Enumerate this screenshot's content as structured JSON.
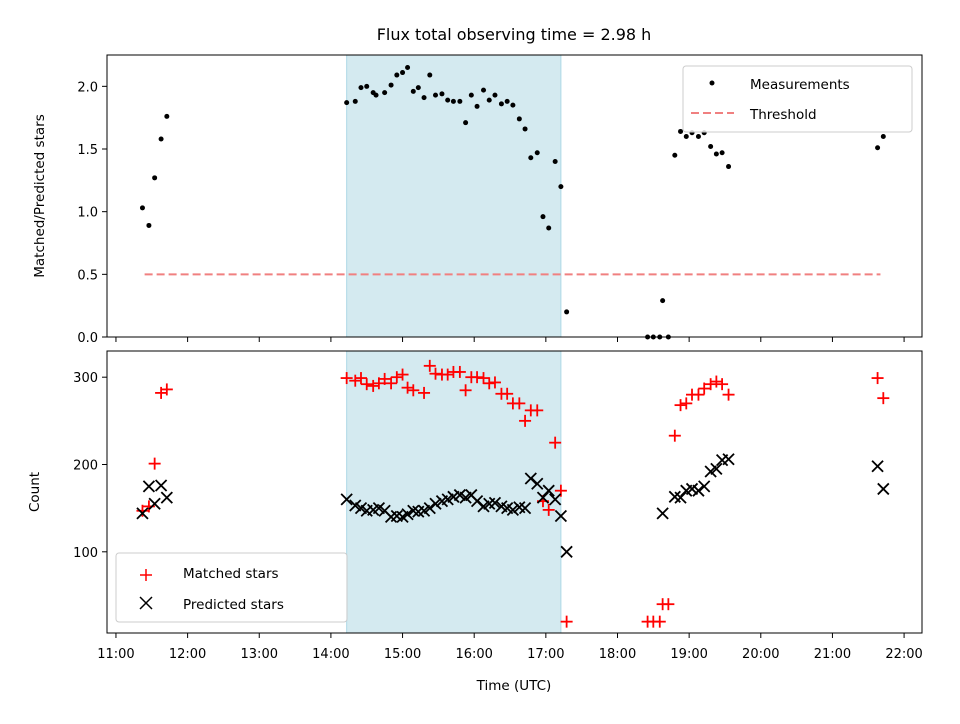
{
  "chart_data": [
    {
      "type": "scatter",
      "title": "Flux total observing time = 2.98 h",
      "xlabel": "",
      "ylabel": "Matched/Predicted stars",
      "ylim": [
        0,
        2.25
      ],
      "xlim": [
        10.875,
        22.25
      ],
      "yticks": [
        0.0,
        0.5,
        1.0,
        1.5,
        2.0
      ],
      "ytick_labels": [
        "0.0",
        "0.5",
        "1.0",
        "1.5",
        "2.0"
      ],
      "shaded_span": [
        14.22,
        17.21
      ],
      "shade_color": "#d4eaf0",
      "legend": {
        "position": "upper right",
        "entries": [
          {
            "label": "Measurements",
            "marker": "dot",
            "color": "#000000"
          },
          {
            "label": "Threshold",
            "marker": "dashed-line",
            "color": "#f08080"
          }
        ]
      },
      "threshold": {
        "name": "Threshold",
        "x": [
          11.4,
          21.67
        ],
        "y": 0.5,
        "color": "#f08080"
      },
      "series": [
        {
          "name": "Measurements",
          "color": "#000000",
          "points": [
            [
              11.37,
              1.03
            ],
            [
              11.46,
              0.89
            ],
            [
              11.54,
              1.27
            ],
            [
              11.63,
              1.58
            ],
            [
              11.71,
              1.76
            ],
            [
              14.22,
              1.87
            ],
            [
              14.34,
              1.88
            ],
            [
              14.42,
              1.99
            ],
            [
              14.5,
              2.0
            ],
            [
              14.59,
              1.95
            ],
            [
              14.63,
              1.93
            ],
            [
              14.75,
              1.95
            ],
            [
              14.84,
              2.01
            ],
            [
              14.92,
              2.09
            ],
            [
              15.0,
              2.11
            ],
            [
              15.07,
              2.15
            ],
            [
              15.15,
              1.96
            ],
            [
              15.22,
              1.99
            ],
            [
              15.3,
              1.91
            ],
            [
              15.38,
              2.09
            ],
            [
              15.46,
              1.93
            ],
            [
              15.55,
              1.94
            ],
            [
              15.63,
              1.89
            ],
            [
              15.71,
              1.88
            ],
            [
              15.8,
              1.88
            ],
            [
              15.88,
              1.71
            ],
            [
              15.96,
              1.93
            ],
            [
              16.04,
              1.84
            ],
            [
              16.13,
              1.97
            ],
            [
              16.21,
              1.89
            ],
            [
              16.29,
              1.93
            ],
            [
              16.38,
              1.86
            ],
            [
              16.46,
              1.88
            ],
            [
              16.54,
              1.85
            ],
            [
              16.63,
              1.74
            ],
            [
              16.71,
              1.66
            ],
            [
              16.79,
              1.43
            ],
            [
              16.88,
              1.47
            ],
            [
              16.96,
              0.96
            ],
            [
              17.04,
              0.87
            ],
            [
              17.13,
              1.4
            ],
            [
              17.21,
              1.2
            ],
            [
              17.29,
              0.2
            ],
            [
              18.42,
              0.0
            ],
            [
              18.5,
              0.0
            ],
            [
              18.59,
              0.0
            ],
            [
              18.63,
              0.29
            ],
            [
              18.71,
              0.0
            ],
            [
              18.8,
              1.45
            ],
            [
              18.88,
              1.64
            ],
            [
              18.96,
              1.6
            ],
            [
              19.04,
              1.63
            ],
            [
              19.13,
              1.6
            ],
            [
              19.21,
              1.63
            ],
            [
              19.3,
              1.52
            ],
            [
              19.38,
              1.46
            ],
            [
              19.46,
              1.47
            ],
            [
              19.55,
              1.36
            ],
            [
              21.63,
              1.51
            ],
            [
              21.71,
              1.6
            ]
          ]
        }
      ]
    },
    {
      "type": "scatter",
      "title": "",
      "xlabel": "Time (UTC)",
      "ylabel": "Count",
      "ylim": [
        7,
        330
      ],
      "xlim": [
        10.875,
        22.25
      ],
      "yticks": [
        100,
        200,
        300
      ],
      "ytick_labels": [
        "100",
        "200",
        "300"
      ],
      "xticks": [
        11,
        12,
        13,
        14,
        15,
        16,
        17,
        18,
        19,
        20,
        21,
        22
      ],
      "xtick_labels": [
        "11:00",
        "12:00",
        "13:00",
        "14:00",
        "15:00",
        "16:00",
        "17:00",
        "18:00",
        "19:00",
        "20:00",
        "21:00",
        "22:00"
      ],
      "shaded_span": [
        14.22,
        17.21
      ],
      "shade_color": "#d4eaf0",
      "legend": {
        "position": "lower left",
        "entries": [
          {
            "label": "Matched stars",
            "marker": "plus",
            "color": "#ff0000"
          },
          {
            "label": "Predicted stars",
            "marker": "x",
            "color": "#000000"
          }
        ]
      },
      "series": [
        {
          "name": "Matched stars",
          "color": "#ff0000",
          "marker": "plus",
          "points": [
            [
              11.37,
              147
            ],
            [
              11.46,
              152
            ],
            [
              11.54,
              201
            ],
            [
              11.63,
              282
            ],
            [
              11.71,
              286
            ],
            [
              14.22,
              299
            ],
            [
              14.34,
              296
            ],
            [
              14.42,
              299
            ],
            [
              14.5,
              292
            ],
            [
              14.59,
              290
            ],
            [
              14.67,
              293
            ],
            [
              14.75,
              298
            ],
            [
              14.84,
              293
            ],
            [
              14.92,
              300
            ],
            [
              15.0,
              303
            ],
            [
              15.07,
              288
            ],
            [
              15.15,
              285
            ],
            [
              15.3,
              282
            ],
            [
              15.38,
              313
            ],
            [
              15.46,
              304
            ],
            [
              15.55,
              303
            ],
            [
              15.63,
              303
            ],
            [
              15.71,
              306
            ],
            [
              15.8,
              306
            ],
            [
              15.88,
              285
            ],
            [
              15.96,
              300
            ],
            [
              16.04,
              300
            ],
            [
              16.13,
              299
            ],
            [
              16.21,
              293
            ],
            [
              16.29,
              294
            ],
            [
              16.38,
              281
            ],
            [
              16.46,
              281
            ],
            [
              16.54,
              270
            ],
            [
              16.63,
              270
            ],
            [
              16.71,
              250
            ],
            [
              16.79,
              262
            ],
            [
              16.88,
              262
            ],
            [
              16.96,
              158
            ],
            [
              17.04,
              148
            ],
            [
              17.13,
              225
            ],
            [
              17.21,
              170
            ],
            [
              17.29,
              20
            ],
            [
              18.42,
              20
            ],
            [
              18.5,
              20
            ],
            [
              18.59,
              20
            ],
            [
              18.63,
              40
            ],
            [
              18.71,
              40
            ],
            [
              18.8,
              233
            ],
            [
              18.88,
              268
            ],
            [
              18.96,
              270
            ],
            [
              19.04,
              280
            ],
            [
              19.13,
              280
            ],
            [
              19.21,
              287
            ],
            [
              19.3,
              292
            ],
            [
              19.38,
              295
            ],
            [
              19.46,
              292
            ],
            [
              19.55,
              280
            ],
            [
              21.63,
              299
            ],
            [
              21.71,
              276
            ]
          ]
        },
        {
          "name": "Predicted stars",
          "color": "#000000",
          "marker": "x",
          "points": [
            [
              11.37,
              144
            ],
            [
              11.46,
              175
            ],
            [
              11.54,
              155
            ],
            [
              11.63,
              176
            ],
            [
              11.71,
              162
            ],
            [
              14.22,
              160
            ],
            [
              14.34,
              153
            ],
            [
              14.42,
              150
            ],
            [
              14.5,
              147
            ],
            [
              14.59,
              148
            ],
            [
              14.67,
              150
            ],
            [
              14.75,
              147
            ],
            [
              14.84,
              140
            ],
            [
              14.92,
              141
            ],
            [
              15.0,
              140
            ],
            [
              15.07,
              143
            ],
            [
              15.15,
              147
            ],
            [
              15.22,
              146
            ],
            [
              15.3,
              147
            ],
            [
              15.38,
              150
            ],
            [
              15.46,
              155
            ],
            [
              15.55,
              158
            ],
            [
              15.63,
              160
            ],
            [
              15.71,
              163
            ],
            [
              15.8,
              165
            ],
            [
              15.88,
              162
            ],
            [
              15.96,
              165
            ],
            [
              16.04,
              158
            ],
            [
              16.13,
              152
            ],
            [
              16.21,
              155
            ],
            [
              16.29,
              156
            ],
            [
              16.38,
              152
            ],
            [
              16.46,
              150
            ],
            [
              16.54,
              148
            ],
            [
              16.63,
              151
            ],
            [
              16.71,
              150
            ],
            [
              16.79,
              184
            ],
            [
              16.88,
              178
            ],
            [
              16.96,
              162
            ],
            [
              17.04,
              170
            ],
            [
              17.13,
              160
            ],
            [
              17.21,
              141
            ],
            [
              17.29,
              100
            ],
            [
              18.63,
              144
            ],
            [
              18.8,
              163
            ],
            [
              18.88,
              162
            ],
            [
              18.96,
              170
            ],
            [
              19.04,
              172
            ],
            [
              19.13,
              170
            ],
            [
              19.21,
              175
            ],
            [
              19.3,
              192
            ],
            [
              19.38,
              195
            ],
            [
              19.46,
              205
            ],
            [
              19.55,
              206
            ],
            [
              21.63,
              198
            ],
            [
              21.71,
              172
            ]
          ]
        }
      ]
    }
  ]
}
